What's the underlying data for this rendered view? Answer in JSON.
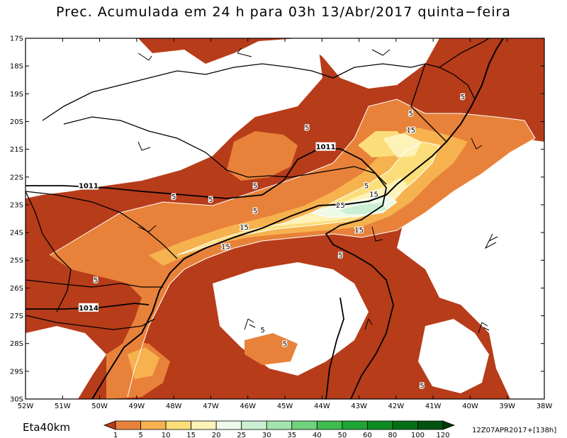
{
  "title": "Prec. Acumulada em 24 h para 03h 13/Abr/2017 quinta−feira",
  "model_label": "Eta40km",
  "run_label": "12Z07APR2017+[138h]",
  "lat_labels": [
    "17S",
    "18S",
    "19S",
    "20S",
    "21S",
    "22S",
    "23S",
    "24S",
    "25S",
    "26S",
    "27S",
    "28S",
    "29S",
    "30S"
  ],
  "lon_labels": [
    "52W",
    "51W",
    "50W",
    "49W",
    "48W",
    "47W",
    "46W",
    "45W",
    "44W",
    "43W",
    "42W",
    "41W",
    "40W",
    "39W",
    "38W"
  ],
  "legend": {
    "values": [
      "1",
      "5",
      "10",
      "15",
      "20",
      "25",
      "30",
      "35",
      "40",
      "50",
      "60",
      "80",
      "100",
      "120"
    ],
    "colors": [
      "#b73c1a",
      "#e8823a",
      "#f6b24f",
      "#fbde7a",
      "#fdf2b8",
      "#eefae8",
      "#cbefd2",
      "#a3e3ad",
      "#72d17f",
      "#3fbc4e",
      "#1ea534",
      "#0d8a22",
      "#056f18",
      "#025310",
      "#013a0a"
    ]
  },
  "precip_colors": {
    "p1": "#b73c1a",
    "p5": "#e8823a",
    "p10": "#f6b24f",
    "p15": "#fbde7a",
    "p20": "#fdf2b8",
    "p25": "#eefae8",
    "p30": "#cbefd2",
    "p35": "#a3e3ad"
  },
  "precip_labels": [
    {
      "text": "5",
      "lon": -45.8,
      "lat": -22.3
    },
    {
      "text": "5",
      "lon": -47.0,
      "lat": -22.8
    },
    {
      "text": "5",
      "lon": -48.0,
      "lat": -22.7
    },
    {
      "text": "5",
      "lon": -45.8,
      "lat": -23.2
    },
    {
      "text": "5",
      "lon": -42.8,
      "lat": -22.3
    },
    {
      "text": "5",
      "lon": -43.5,
      "lat": -24.8
    },
    {
      "text": "5",
      "lon": -50.1,
      "lat": -25.7
    },
    {
      "text": "5",
      "lon": -45.6,
      "lat": -27.5
    },
    {
      "text": "5",
      "lon": -45.0,
      "lat": -28.0
    },
    {
      "text": "5",
      "lon": -41.3,
      "lat": -29.5
    },
    {
      "text": "5",
      "lon": -41.6,
      "lat": -19.7
    },
    {
      "text": "5",
      "lon": -40.2,
      "lat": -19.1
    },
    {
      "text": "5",
      "lon": -44.4,
      "lat": -20.2
    },
    {
      "text": "15",
      "lon": -41.6,
      "lat": -20.3
    },
    {
      "text": "15",
      "lon": -42.6,
      "lat": -22.6
    },
    {
      "text": "15",
      "lon": -43.0,
      "lat": -23.9
    },
    {
      "text": "15",
      "lon": -46.1,
      "lat": -23.8
    },
    {
      "text": "15",
      "lon": -46.6,
      "lat": -24.5
    },
    {
      "text": "25",
      "lon": -43.5,
      "lat": -23.0
    }
  ],
  "isobar_labels": [
    {
      "text": "1011",
      "lon": -43.9,
      "lat": -20.9
    },
    {
      "text": "1011",
      "lon": -50.3,
      "lat": -22.3
    },
    {
      "text": "1014",
      "lon": -50.3,
      "lat": -26.7
    }
  ]
}
